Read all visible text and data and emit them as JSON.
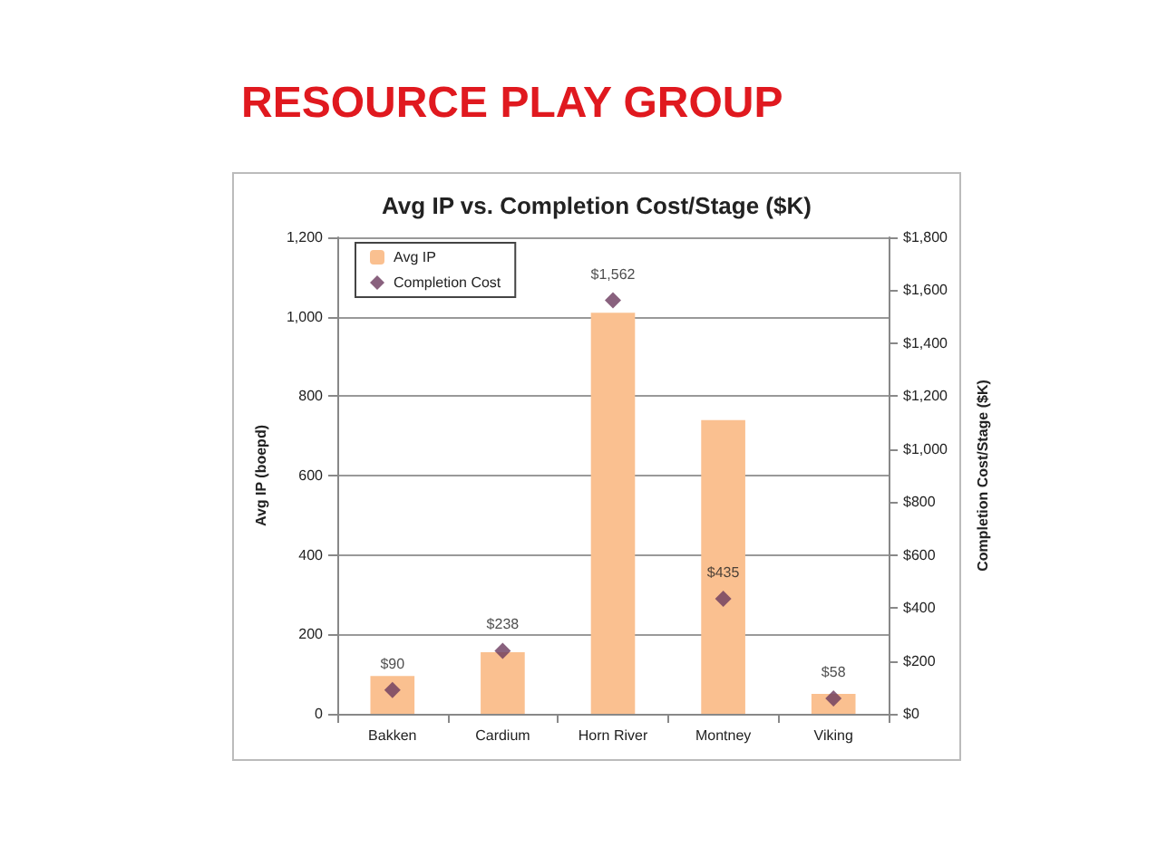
{
  "chart_data": {
    "type": "bar",
    "title": "RESOURCE PLAY GROUP",
    "subtitle": "Avg IP vs. Completion Cost/Stage ($K)",
    "ylabel": "Avg IP (boepd)",
    "y2label": "Completion Cost/Stage ($K)",
    "categories": [
      "Bakken",
      "Cardium",
      "Horn River",
      "Montney",
      "Viking"
    ],
    "series": [
      {
        "name": "Avg IP",
        "color": "#fac090",
        "values": [
          95,
          155,
          1010,
          740,
          50
        ]
      },
      {
        "name": "Completion Cost",
        "type": "scatter",
        "axis": "y2",
        "color": "#6b3a5e",
        "marker": "diamond",
        "values": [
          90,
          238,
          1562,
          435,
          58
        ],
        "value_labels": [
          "$90",
          "$238",
          "$1,562",
          "$435",
          "$58"
        ]
      }
    ],
    "ylim": [
      0,
      1200
    ],
    "yticks": [
      0,
      200,
      400,
      600,
      800,
      {
        "value": 1000,
        "label": "1,000"
      },
      {
        "value": 1200,
        "label": "1,200"
      }
    ],
    "y2lim": [
      0,
      1800
    ],
    "y2ticks": [
      {
        "value": 0,
        "label": "$0"
      },
      {
        "value": 200,
        "label": "$200"
      },
      {
        "value": 400,
        "label": "$400"
      },
      {
        "value": 600,
        "label": "$600"
      },
      {
        "value": 800,
        "label": "$800"
      },
      {
        "value": 1000,
        "label": "$1,000"
      },
      {
        "value": 1200,
        "label": "$1,200"
      },
      {
        "value": 1400,
        "label": "$1,400"
      },
      {
        "value": 1600,
        "label": "$1,600"
      },
      {
        "value": 1800,
        "label": "$1,800"
      }
    ],
    "grid": "y",
    "legend": "top left"
  }
}
